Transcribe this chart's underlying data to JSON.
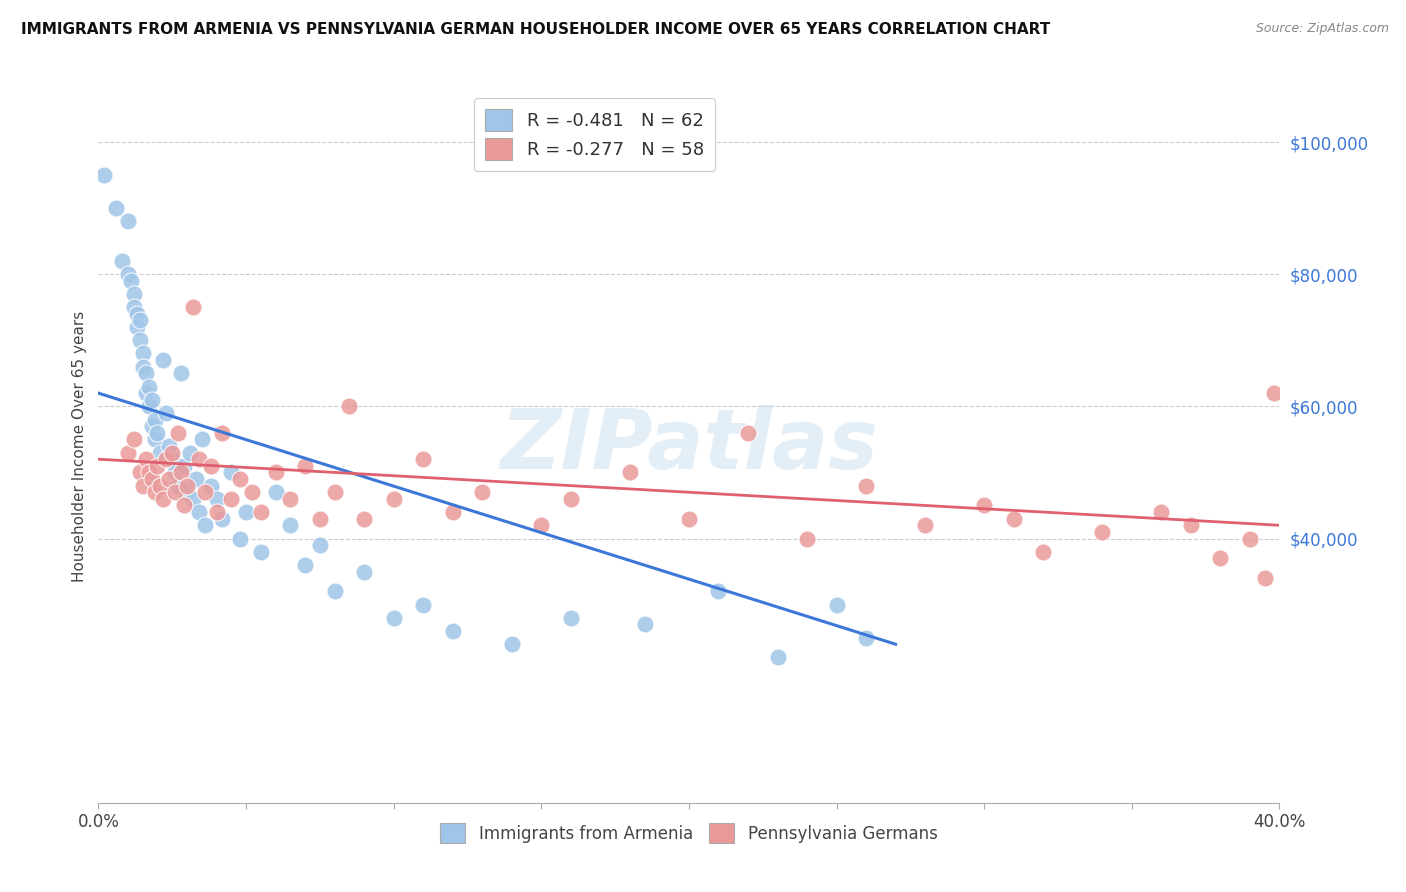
{
  "title": "IMMIGRANTS FROM ARMENIA VS PENNSYLVANIA GERMAN HOUSEHOLDER INCOME OVER 65 YEARS CORRELATION CHART",
  "source": "Source: ZipAtlas.com",
  "ylabel": "Householder Income Over 65 years",
  "right_yticks": [
    "$100,000",
    "$80,000",
    "$60,000",
    "$40,000"
  ],
  "right_ytick_values": [
    100000,
    80000,
    60000,
    40000
  ],
  "legend_blue_r": "R = -0.481",
  "legend_blue_n": "N = 62",
  "legend_pink_r": "R = -0.277",
  "legend_pink_n": "N = 58",
  "legend_label_blue": "Immigrants from Armenia",
  "legend_label_pink": "Pennsylvania Germans",
  "watermark": "ZIPatlas",
  "xlim": [
    0.0,
    0.4
  ],
  "ylim": [
    0,
    108000
  ],
  "blue_color": "#9fc5e8",
  "pink_color": "#ea9999",
  "line_blue": "#3c78d8",
  "line_pink": "#e06070",
  "blue_line_x0": 0.0,
  "blue_line_y0": 62000,
  "blue_line_x1": 0.27,
  "blue_line_y1": 24000,
  "pink_line_x0": 0.0,
  "pink_line_y0": 52000,
  "pink_line_x1": 0.4,
  "pink_line_y1": 42000,
  "blue_points_x": [
    0.002,
    0.006,
    0.008,
    0.01,
    0.01,
    0.011,
    0.012,
    0.012,
    0.013,
    0.013,
    0.014,
    0.014,
    0.015,
    0.015,
    0.016,
    0.016,
    0.017,
    0.017,
    0.018,
    0.018,
    0.019,
    0.019,
    0.02,
    0.021,
    0.022,
    0.023,
    0.024,
    0.025,
    0.026,
    0.027,
    0.028,
    0.029,
    0.03,
    0.031,
    0.032,
    0.033,
    0.034,
    0.035,
    0.036,
    0.038,
    0.04,
    0.042,
    0.045,
    0.048,
    0.05,
    0.055,
    0.06,
    0.065,
    0.07,
    0.075,
    0.08,
    0.09,
    0.1,
    0.11,
    0.12,
    0.14,
    0.16,
    0.185,
    0.21,
    0.23,
    0.25,
    0.26
  ],
  "blue_points_y": [
    95000,
    90000,
    82000,
    88000,
    80000,
    79000,
    77000,
    75000,
    74000,
    72000,
    73000,
    70000,
    68000,
    66000,
    65000,
    62000,
    63000,
    60000,
    61000,
    57000,
    58000,
    55000,
    56000,
    53000,
    67000,
    59000,
    54000,
    52000,
    50000,
    48000,
    65000,
    51000,
    47000,
    53000,
    46000,
    49000,
    44000,
    55000,
    42000,
    48000,
    46000,
    43000,
    50000,
    40000,
    44000,
    38000,
    47000,
    42000,
    36000,
    39000,
    32000,
    35000,
    28000,
    30000,
    26000,
    24000,
    28000,
    27000,
    32000,
    22000,
    30000,
    25000
  ],
  "pink_points_x": [
    0.01,
    0.012,
    0.014,
    0.015,
    0.016,
    0.017,
    0.018,
    0.019,
    0.02,
    0.021,
    0.022,
    0.023,
    0.024,
    0.025,
    0.026,
    0.027,
    0.028,
    0.029,
    0.03,
    0.032,
    0.034,
    0.036,
    0.038,
    0.04,
    0.042,
    0.045,
    0.048,
    0.052,
    0.055,
    0.06,
    0.065,
    0.07,
    0.075,
    0.08,
    0.085,
    0.09,
    0.1,
    0.11,
    0.12,
    0.13,
    0.15,
    0.16,
    0.18,
    0.2,
    0.22,
    0.24,
    0.26,
    0.28,
    0.3,
    0.31,
    0.32,
    0.34,
    0.36,
    0.37,
    0.38,
    0.39,
    0.395,
    0.398
  ],
  "pink_points_y": [
    53000,
    55000,
    50000,
    48000,
    52000,
    50000,
    49000,
    47000,
    51000,
    48000,
    46000,
    52000,
    49000,
    53000,
    47000,
    56000,
    50000,
    45000,
    48000,
    75000,
    52000,
    47000,
    51000,
    44000,
    56000,
    46000,
    49000,
    47000,
    44000,
    50000,
    46000,
    51000,
    43000,
    47000,
    60000,
    43000,
    46000,
    52000,
    44000,
    47000,
    42000,
    46000,
    50000,
    43000,
    56000,
    40000,
    48000,
    42000,
    45000,
    43000,
    38000,
    41000,
    44000,
    42000,
    37000,
    40000,
    34000,
    62000
  ]
}
